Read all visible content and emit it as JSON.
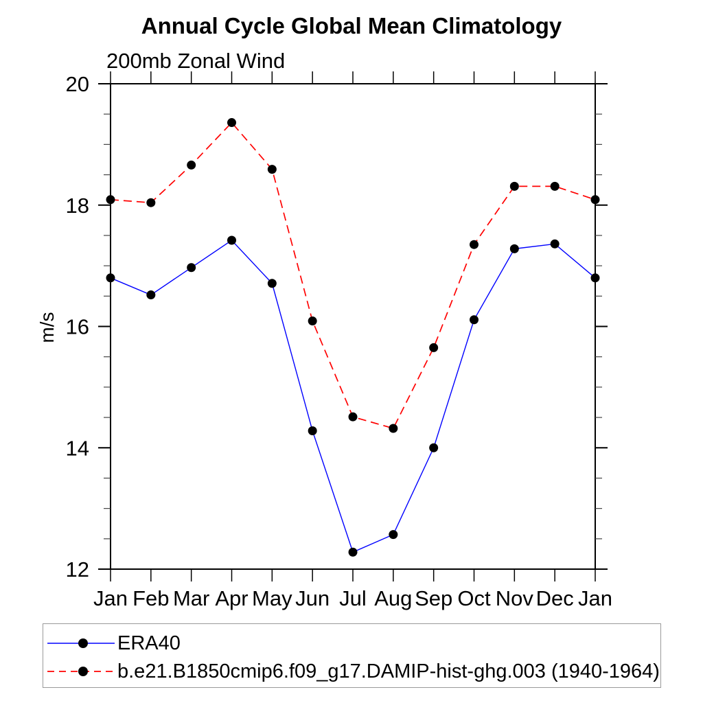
{
  "chart_data": {
    "type": "line",
    "title": "Annual Cycle Global Mean Climatology",
    "subtitle": "200mb Zonal Wind",
    "ylabel": "m/s",
    "xlabel": "",
    "categories": [
      "Jan",
      "Feb",
      "Mar",
      "Apr",
      "May",
      "Jun",
      "Jul",
      "Aug",
      "Sep",
      "Oct",
      "Nov",
      "Dec",
      "Jan"
    ],
    "ylim": [
      12,
      20
    ],
    "y_major_ticks": [
      12,
      14,
      16,
      18,
      20
    ],
    "y_minor_step": 0.5,
    "grid": false,
    "legend_position": "bottom",
    "marker": {
      "shape": "filled-circle",
      "color": "#000000",
      "radius_px": 6.5
    },
    "series": [
      {
        "name": "ERA40",
        "color": "#0000ff",
        "line_style": "solid",
        "values": [
          16.8,
          16.52,
          16.97,
          17.42,
          16.71,
          14.28,
          12.28,
          12.57,
          14.0,
          16.11,
          17.28,
          17.36,
          16.8
        ]
      },
      {
        "name": "b.e21.B1850cmip6.f09_g17.DAMIP-hist-ghg.003 (1940-1964)",
        "color": "#ff0000",
        "line_style": "dashed",
        "values": [
          18.09,
          18.04,
          18.66,
          19.36,
          18.59,
          16.09,
          14.51,
          14.32,
          15.65,
          17.35,
          18.31,
          18.31,
          18.09
        ]
      }
    ]
  }
}
